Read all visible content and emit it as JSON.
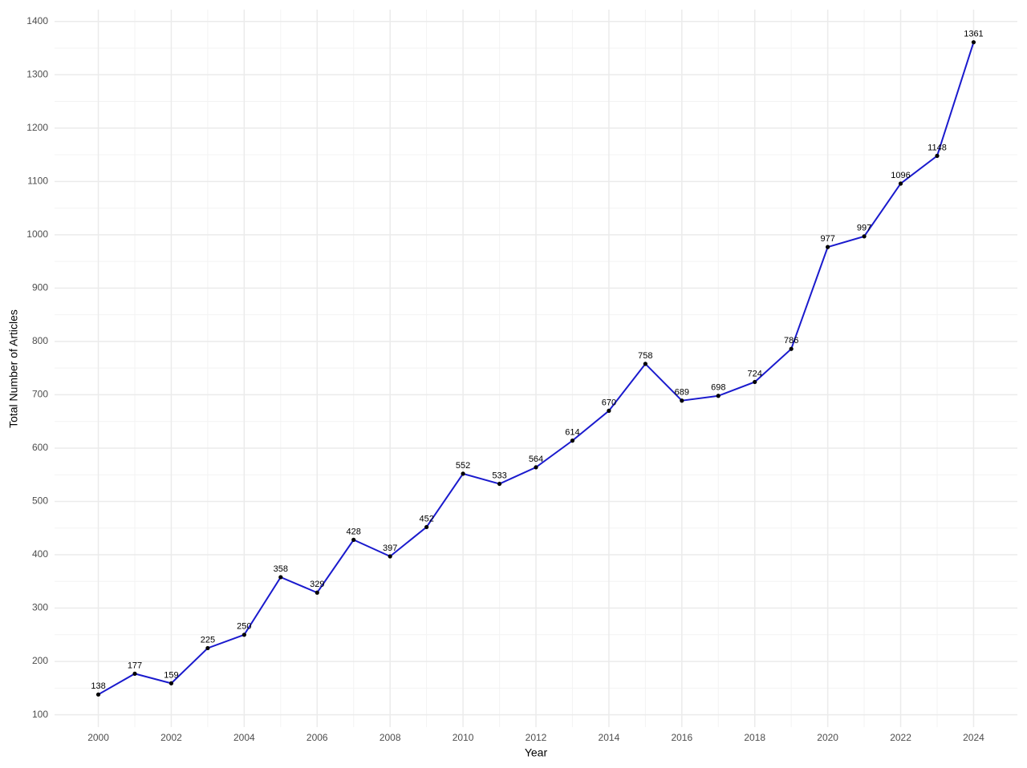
{
  "chart_data": {
    "type": "line",
    "x_label": "Year",
    "y_label": "Total Number of Articles",
    "x": [
      2000,
      2001,
      2002,
      2003,
      2004,
      2005,
      2006,
      2007,
      2008,
      2009,
      2010,
      2011,
      2012,
      2013,
      2014,
      2015,
      2016,
      2017,
      2018,
      2019,
      2020,
      2021,
      2022,
      2023,
      2024
    ],
    "values": [
      138,
      177,
      159,
      225,
      250,
      358,
      329,
      428,
      397,
      452,
      552,
      533,
      564,
      614,
      670,
      758,
      689,
      698,
      724,
      786,
      977,
      997,
      1096,
      1148,
      1361
    ],
    "color": "#1a1acd",
    "point_color": "#000000",
    "xlim": [
      1998.8,
      2025.2
    ],
    "xticks": [
      2000,
      2002,
      2004,
      2006,
      2008,
      2010,
      2012,
      2014,
      2016,
      2018,
      2020,
      2022,
      2024
    ],
    "ylim": [
      76.85,
      1422.15
    ],
    "yticks": [
      100,
      200,
      300,
      400,
      500,
      600,
      700,
      800,
      900,
      1000,
      1100,
      1200,
      1300,
      1400
    ],
    "grid": true,
    "minor_grid": true
  }
}
